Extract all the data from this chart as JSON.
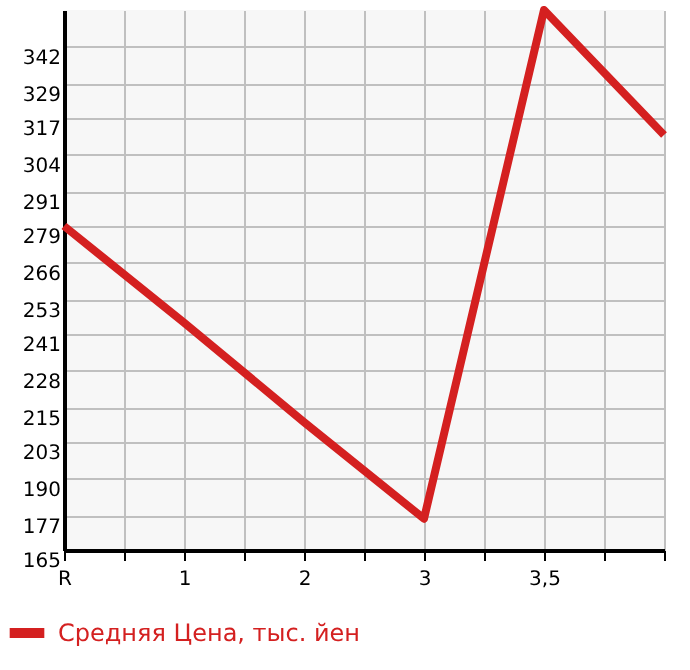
{
  "chart_data": {
    "type": "line",
    "categories": [
      "R",
      "1",
      "2",
      "3",
      "3,5",
      null
    ],
    "series": [
      {
        "name": "Средняя Цена, тыс. йен",
        "color": "#d42020",
        "values": [
          279,
          245,
          210,
          176,
          355,
          311
        ]
      }
    ],
    "ylim": [
      165,
      355
    ],
    "yticks": [
      165,
      177,
      190,
      203,
      215,
      228,
      241,
      253,
      266,
      279,
      291,
      304,
      317,
      329,
      342
    ],
    "grid": true,
    "legend": "bottom left",
    "marker": "none",
    "line_style": "solid"
  }
}
